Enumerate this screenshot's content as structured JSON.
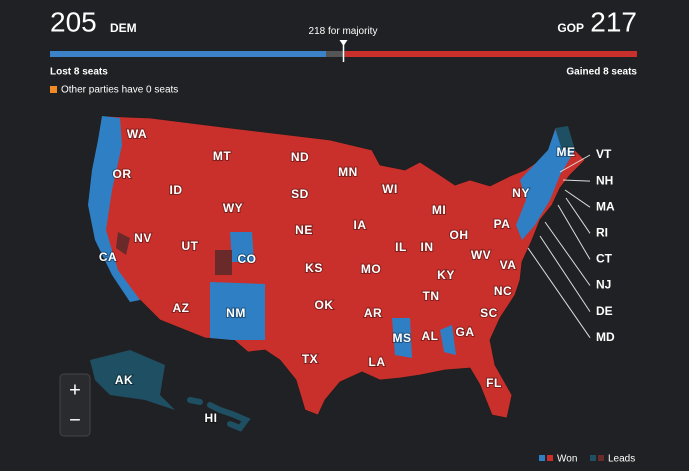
{
  "header": {
    "dem": {
      "seats": 205,
      "label": "DEM",
      "change": "Lost 8 seats",
      "color": "#3b82c8"
    },
    "gop": {
      "seats": 217,
      "label": "GOP",
      "change": "Gained 8 seats",
      "color": "#c9302c"
    },
    "majority": 218,
    "majority_text": "for majority",
    "other_note": "Other parties have 0 seats"
  },
  "states": [
    "WA",
    "OR",
    "CA",
    "NV",
    "ID",
    "MT",
    "WY",
    "UT",
    "CO",
    "AZ",
    "NM",
    "ND",
    "SD",
    "NE",
    "KS",
    "OK",
    "TX",
    "MN",
    "IA",
    "MO",
    "AR",
    "LA",
    "WI",
    "IL",
    "MS",
    "MI",
    "IN",
    "KY",
    "TN",
    "AL",
    "GA",
    "FL",
    "OH",
    "WV",
    "VA",
    "NC",
    "SC",
    "PA",
    "NY",
    "ME",
    "AK",
    "HI"
  ],
  "small_states": [
    "VT",
    "NH",
    "MA",
    "RI",
    "CT",
    "NJ",
    "DE",
    "MD"
  ],
  "controls": {
    "zoom_in": "+",
    "zoom_out": "−"
  },
  "legend": {
    "won": "Won",
    "leads": "Leads"
  }
}
